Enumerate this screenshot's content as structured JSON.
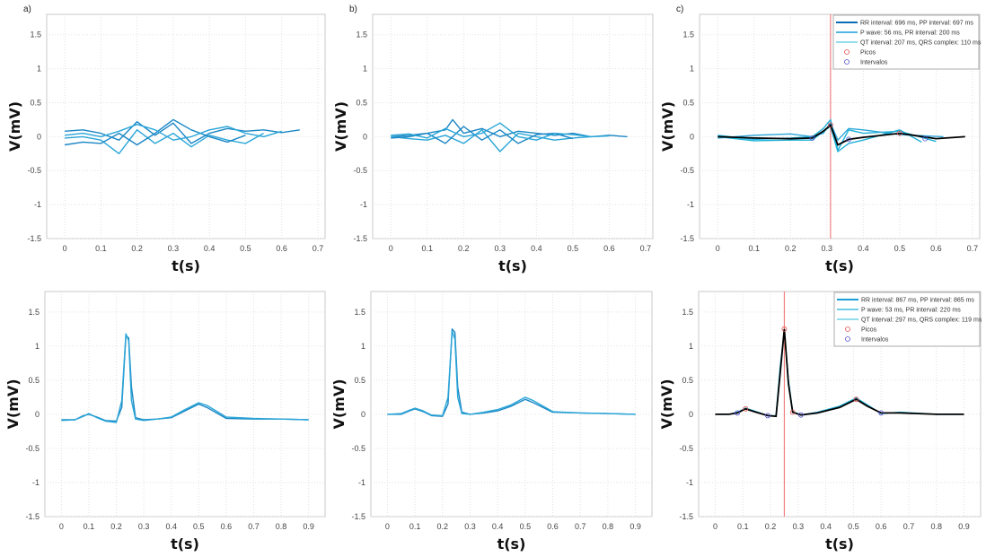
{
  "chart_data": [
    {
      "panel": "a)",
      "row": "top",
      "type": "line",
      "xlabel": "t(s)",
      "ylabel": "V(mV)",
      "xlim": [
        -0.05,
        0.72
      ],
      "ylim": [
        -1.5,
        1.8
      ],
      "xticks": [
        "0",
        "0.1",
        "0.2",
        "0.3",
        "0.4",
        "0.5",
        "0.6",
        "0.7"
      ],
      "yticks": [
        "-1.5",
        "-1",
        "-0.5",
        "0",
        "0.5",
        "1",
        "1.5"
      ],
      "grid": true,
      "series_color": "#1a86c4",
      "series": [
        {
          "x": [
            0,
            0.05,
            0.1,
            0.15,
            0.2,
            0.25,
            0.3,
            0.35,
            0.4,
            0.45,
            0.5,
            0.55,
            0.6,
            0.65
          ],
          "y": [
            0.08,
            0.1,
            0.05,
            -0.05,
            0.22,
            0.02,
            0.2,
            -0.1,
            0.05,
            0.12,
            0.08,
            0.1,
            0.06,
            0.1
          ]
        },
        {
          "x": [
            0,
            0.05,
            0.1,
            0.15,
            0.2,
            0.25,
            0.3,
            0.35,
            0.4,
            0.45,
            0.5,
            0.55
          ],
          "y": [
            -0.02,
            0.0,
            -0.05,
            -0.25,
            0.1,
            -0.1,
            0.05,
            -0.15,
            0.02,
            -0.05,
            -0.1,
            0.05
          ]
        },
        {
          "x": [
            0,
            0.05,
            0.1,
            0.15,
            0.2,
            0.25,
            0.3,
            0.35,
            0.4,
            0.45,
            0.5
          ],
          "y": [
            -0.12,
            -0.08,
            -0.1,
            0.05,
            -0.12,
            0.05,
            0.25,
            0.1,
            0.0,
            -0.08,
            0.02
          ]
        },
        {
          "x": [
            0,
            0.05,
            0.1,
            0.15,
            0.2,
            0.25,
            0.3,
            0.35,
            0.4,
            0.45,
            0.5,
            0.55,
            0.6
          ],
          "y": [
            0.02,
            0.05,
            0.0,
            0.08,
            0.18,
            0.1,
            -0.05,
            0.0,
            0.1,
            0.15,
            0.05,
            0.0,
            0.08
          ]
        }
      ]
    },
    {
      "panel": "b)",
      "row": "top",
      "type": "line",
      "xlabel": "t(s)",
      "ylabel": "V(mV)",
      "xlim": [
        -0.05,
        0.72
      ],
      "ylim": [
        -1.5,
        1.8
      ],
      "xticks": [
        "0",
        "0.1",
        "0.2",
        "0.3",
        "0.4",
        "0.5",
        "0.6",
        "0.7"
      ],
      "yticks": [
        "-1.5",
        "-1",
        "-0.5",
        "0",
        "0.5",
        "1",
        "1.5"
      ],
      "grid": true,
      "series_color": "#1a86c4",
      "series": [
        {
          "x": [
            0,
            0.05,
            0.1,
            0.15,
            0.17,
            0.2,
            0.25,
            0.3,
            0.35,
            0.4,
            0.45,
            0.5,
            0.55,
            0.6,
            0.65
          ],
          "y": [
            0.0,
            0.02,
            0.05,
            0.1,
            0.25,
            0.05,
            0.12,
            0.0,
            0.08,
            0.05,
            0.02,
            0.05,
            0.0,
            0.02,
            0.0
          ]
        },
        {
          "x": [
            0,
            0.05,
            0.1,
            0.15,
            0.2,
            0.25,
            0.3,
            0.35,
            0.4,
            0.45,
            0.5,
            0.55
          ],
          "y": [
            0.0,
            -0.03,
            -0.05,
            0.02,
            -0.1,
            0.1,
            -0.22,
            0.05,
            0.0,
            -0.05,
            -0.02,
            0.0
          ]
        },
        {
          "x": [
            0,
            0.05,
            0.1,
            0.15,
            0.2,
            0.25,
            0.3,
            0.35,
            0.4,
            0.45,
            0.5
          ],
          "y": [
            -0.02,
            0.0,
            0.05,
            -0.1,
            0.15,
            -0.05,
            0.1,
            -0.1,
            0.03,
            0.05,
            -0.03
          ]
        },
        {
          "x": [
            0,
            0.05,
            0.1,
            0.15,
            0.2,
            0.25,
            0.3,
            0.35,
            0.4,
            0.45,
            0.5,
            0.55,
            0.6
          ],
          "y": [
            0.02,
            0.04,
            -0.02,
            0.12,
            0.0,
            0.05,
            0.2,
            0.0,
            -0.05,
            0.05,
            0.03,
            0.0,
            0.01
          ]
        }
      ]
    },
    {
      "panel": "c)",
      "row": "top",
      "type": "line",
      "xlabel": "t(s)",
      "ylabel": "V(mV)",
      "xlim": [
        -0.05,
        0.72
      ],
      "ylim": [
        -1.5,
        1.8
      ],
      "xticks": [
        "0",
        "0.1",
        "0.2",
        "0.3",
        "0.4",
        "0.5",
        "0.6",
        "0.7"
      ],
      "yticks": [
        "-1.5",
        "-1",
        "-0.5",
        "0",
        "0.5",
        "1",
        "1.5"
      ],
      "grid": true,
      "vline": {
        "x": 0.31,
        "color": "#f08080"
      },
      "series_color": "#1fb0d8",
      "series": [
        {
          "x": [
            0,
            0.1,
            0.2,
            0.26,
            0.29,
            0.31,
            0.33,
            0.36,
            0.4,
            0.5,
            0.6
          ],
          "y": [
            0.02,
            -0.04,
            -0.02,
            0.0,
            0.12,
            0.25,
            -0.2,
            0.1,
            0.05,
            0.08,
            -0.07
          ]
        },
        {
          "x": [
            0,
            0.1,
            0.2,
            0.26,
            0.29,
            0.31,
            0.33,
            0.36,
            0.4,
            0.5,
            0.62
          ],
          "y": [
            -0.02,
            0.02,
            0.04,
            0.0,
            0.05,
            0.2,
            -0.05,
            0.12,
            0.1,
            0.03,
            0.0
          ]
        },
        {
          "x": [
            0,
            0.1,
            0.2,
            0.26,
            0.29,
            0.31,
            0.33,
            0.36,
            0.4,
            0.5,
            0.56
          ],
          "y": [
            0.0,
            -0.06,
            -0.05,
            -0.05,
            0.08,
            0.15,
            -0.22,
            -0.1,
            -0.05,
            0.1,
            -0.08
          ]
        }
      ],
      "mean": {
        "color": "#000000",
        "x": [
          0,
          0.1,
          0.2,
          0.26,
          0.29,
          0.31,
          0.33,
          0.36,
          0.4,
          0.5,
          0.6,
          0.68
        ],
        "y": [
          0,
          -0.02,
          -0.03,
          -0.02,
          0.08,
          0.17,
          -0.12,
          -0.04,
          -0.01,
          0.05,
          -0.03,
          0.0
        ]
      },
      "picos": {
        "color": "#e05050",
        "x": [
          0.31,
          0.5
        ],
        "y": [
          0.17,
          0.05
        ]
      },
      "intervalos": {
        "color": "#5050d0",
        "x": [
          0.26,
          0.36,
          0.57
        ],
        "y": [
          -0.02,
          -0.04,
          -0.03
        ]
      },
      "legend": {
        "placement": "top-right",
        "entries": [
          {
            "label": "RR interval: 696 ms,  PP interval: 697 ms",
            "color": "#0a6cb4",
            "kind": "line"
          },
          {
            "label": "P wave: 56 ms, PR interval: 200 ms",
            "color": "#1a9ed8",
            "kind": "line"
          },
          {
            "label": "QT interval: 207 ms,  QRS complex: 110 ms",
            "color": "#50c8e0",
            "kind": "line"
          },
          {
            "label": "Picos",
            "color": "#e05050",
            "kind": "circle"
          },
          {
            "label": "Intervalos",
            "color": "#5050d0",
            "kind": "circle"
          }
        ]
      }
    },
    {
      "panel": "",
      "row": "bottom",
      "type": "line",
      "xlabel": "t(s)",
      "ylabel": "V(mV)",
      "xlim": [
        -0.06,
        0.96
      ],
      "ylim": [
        -1.5,
        1.8
      ],
      "xticks": [
        "0",
        "0.1",
        "0.2",
        "0.3",
        "0.4",
        "0.5",
        "0.6",
        "0.7",
        "0.8",
        "0.9"
      ],
      "yticks": [
        "-1.5",
        "-1",
        "-0.5",
        "0",
        "0.5",
        "1",
        "1.5"
      ],
      "grid": true,
      "series_color": "#1a86c4",
      "series": [
        {
          "x": [
            0,
            0.05,
            0.08,
            0.1,
            0.13,
            0.16,
            0.2,
            0.22,
            0.235,
            0.245,
            0.255,
            0.27,
            0.3,
            0.35,
            0.4,
            0.45,
            0.5,
            0.53,
            0.6,
            0.7,
            0.8,
            0.9
          ],
          "y": [
            -0.08,
            -0.08,
            -0.02,
            0.0,
            -0.04,
            -0.09,
            -0.1,
            0.1,
            1.15,
            1.12,
            0.4,
            -0.05,
            -0.08,
            -0.07,
            -0.05,
            0.05,
            0.15,
            0.1,
            -0.06,
            -0.07,
            -0.07,
            -0.08
          ]
        },
        {
          "x": [
            0,
            0.05,
            0.08,
            0.1,
            0.13,
            0.16,
            0.2,
            0.22,
            0.235,
            0.245,
            0.255,
            0.27,
            0.3,
            0.35,
            0.4,
            0.45,
            0.5,
            0.53,
            0.6,
            0.7,
            0.8,
            0.9
          ],
          "y": [
            -0.09,
            -0.08,
            -0.03,
            0.01,
            -0.05,
            -0.1,
            -0.12,
            0.2,
            1.18,
            1.08,
            0.2,
            -0.07,
            -0.09,
            -0.07,
            -0.04,
            0.07,
            0.17,
            0.13,
            -0.04,
            -0.06,
            -0.07,
            -0.08
          ]
        }
      ]
    },
    {
      "panel": "",
      "row": "bottom",
      "type": "line",
      "xlabel": "t(s)",
      "ylabel": "V(mV)",
      "xlim": [
        -0.06,
        0.96
      ],
      "ylim": [
        -1.5,
        1.8
      ],
      "xticks": [
        "0",
        "0.1",
        "0.2",
        "0.3",
        "0.4",
        "0.5",
        "0.6",
        "0.7",
        "0.8",
        "0.9"
      ],
      "yticks": [
        "-1.5",
        "-1",
        "-0.5",
        "0",
        "0.5",
        "1",
        "1.5"
      ],
      "grid": true,
      "series_color": "#1a86c4",
      "series": [
        {
          "x": [
            0,
            0.05,
            0.08,
            0.1,
            0.13,
            0.16,
            0.2,
            0.22,
            0.235,
            0.245,
            0.255,
            0.27,
            0.3,
            0.35,
            0.4,
            0.45,
            0.5,
            0.53,
            0.6,
            0.7,
            0.8,
            0.9
          ],
          "y": [
            0,
            0.0,
            0.05,
            0.08,
            0.04,
            -0.02,
            -0.03,
            0.15,
            1.25,
            1.2,
            0.4,
            0.03,
            0.0,
            0.02,
            0.05,
            0.12,
            0.22,
            0.17,
            0.03,
            0.02,
            0.01,
            0.0
          ]
        },
        {
          "x": [
            0,
            0.05,
            0.08,
            0.1,
            0.13,
            0.16,
            0.2,
            0.22,
            0.235,
            0.245,
            0.255,
            0.27,
            0.3,
            0.35,
            0.4,
            0.45,
            0.5,
            0.53,
            0.6,
            0.7,
            0.8,
            0.9
          ],
          "y": [
            0,
            0.01,
            0.06,
            0.09,
            0.05,
            -0.01,
            -0.02,
            0.25,
            1.22,
            1.1,
            0.25,
            0.01,
            0.0,
            0.03,
            0.07,
            0.14,
            0.25,
            0.2,
            0.04,
            0.02,
            0.01,
            0.0
          ]
        }
      ]
    },
    {
      "panel": "",
      "row": "bottom",
      "type": "line",
      "xlabel": "t(s)",
      "ylabel": "V(mV)",
      "xlim": [
        -0.06,
        0.96
      ],
      "ylim": [
        -1.5,
        1.8
      ],
      "xticks": [
        "0",
        "0.1",
        "0.2",
        "0.3",
        "0.4",
        "0.5",
        "0.6",
        "0.7",
        "0.8",
        "0.9"
      ],
      "yticks": [
        "-1.5",
        "-1",
        "-0.5",
        "0",
        "0.5",
        "1",
        "1.5"
      ],
      "grid": true,
      "vline": {
        "x": 0.25,
        "color": "#f08080"
      },
      "series_color": "#1fb0d8",
      "series": [
        {
          "x": [
            0,
            0.05,
            0.08,
            0.11,
            0.14,
            0.19,
            0.22,
            0.235,
            0.25,
            0.265,
            0.28,
            0.31,
            0.37,
            0.45,
            0.51,
            0.55,
            0.6,
            0.67,
            0.8,
            0.9
          ],
          "y": [
            0,
            0.0,
            0.03,
            0.09,
            0.05,
            -0.02,
            -0.02,
            0.7,
            1.22,
            0.5,
            0.04,
            -0.01,
            0.03,
            0.12,
            0.24,
            0.14,
            0.01,
            0.03,
            0.0,
            0.0
          ]
        }
      ],
      "mean": {
        "color": "#000000",
        "x": [
          0,
          0.05,
          0.08,
          0.11,
          0.14,
          0.19,
          0.22,
          0.235,
          0.25,
          0.265,
          0.28,
          0.31,
          0.37,
          0.45,
          0.51,
          0.55,
          0.6,
          0.67,
          0.8,
          0.9
        ],
        "y": [
          0,
          0.0,
          0.02,
          0.08,
          0.04,
          -0.02,
          -0.03,
          0.6,
          1.25,
          0.45,
          0.03,
          -0.01,
          0.02,
          0.1,
          0.22,
          0.12,
          0.02,
          0.02,
          0.0,
          0.0
        ]
      },
      "picos": {
        "color": "#e05050",
        "x": [
          0.11,
          0.25,
          0.28,
          0.51
        ],
        "y": [
          0.08,
          1.25,
          0.03,
          0.22
        ]
      },
      "intervalos": {
        "color": "#5050d0",
        "x": [
          0.08,
          0.19,
          0.31,
          0.6
        ],
        "y": [
          0.02,
          -0.02,
          -0.01,
          0.02
        ]
      },
      "legend": {
        "placement": "top-right",
        "entries": [
          {
            "label": "RR interval: 867 ms,  PP interval: 865 ms",
            "color": "#1a9ed8",
            "kind": "line"
          },
          {
            "label": "P wave: 53 ms, PR interval: 220 ms",
            "color": "#40bce0",
            "kind": "line"
          },
          {
            "label": "QT interval: 297 ms,  QRS complex: 119 ms",
            "color": "#50c8e0",
            "kind": "line"
          },
          {
            "label": "Picos",
            "color": "#e05050",
            "kind": "circle"
          },
          {
            "label": "Intervalos",
            "color": "#5050d0",
            "kind": "circle"
          }
        ]
      }
    }
  ]
}
